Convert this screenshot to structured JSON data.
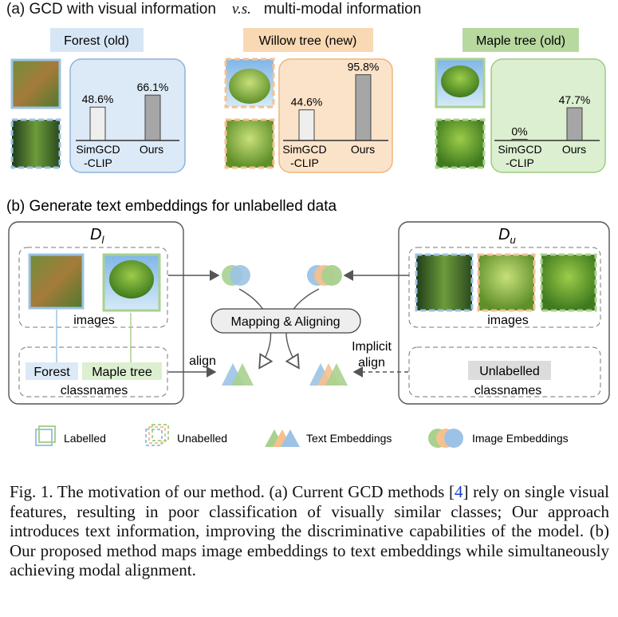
{
  "panel_a": {
    "title": "(a) GCD with visual information",
    "title_vs": "v.s.",
    "title_rest": "multi-modal information",
    "groups": [
      {
        "label": "Forest (old)",
        "label_color": "#d7e6f5",
        "box_color": "#dce9f6",
        "box_stroke": "#8db3dc",
        "simgcd_value": "48.6%",
        "simgcd_fraction": 0.486,
        "ours_value": "66.1%",
        "ours_fraction": 0.661
      },
      {
        "label": "Willow tree (new)",
        "label_color": "#f9d8b4",
        "box_color": "#fbe3c9",
        "box_stroke": "#efb57a",
        "simgcd_value": "44.6%",
        "simgcd_fraction": 0.446,
        "ours_value": "95.8%",
        "ours_fraction": 0.958
      },
      {
        "label": "Maple tree (old)",
        "label_color": "#b7d9a0",
        "box_color": "#dcefd0",
        "box_stroke": "#9ccc80",
        "simgcd_value": "0%",
        "simgcd_fraction": 0.0,
        "ours_value": "47.7%",
        "ours_fraction": 0.477
      }
    ],
    "x_label_1a": "SimGCD",
    "x_label_1b": "-CLIP",
    "x_label_2": "Ours"
  },
  "panel_b": {
    "title": "(b) Generate text embeddings for unlabelled data",
    "dl_symbol": "D",
    "dl_sub": "l",
    "du_symbol": "D",
    "du_sub": "u",
    "images_label": "images",
    "classnames_label": "classnames",
    "forest_label": "Forest",
    "maple_label": "Maple tree",
    "unlabelled_tag": "Unlabelled",
    "mapping_label": "Mapping & Aligning",
    "align_label": "align",
    "implicit_label_1": "Implicit",
    "implicit_label_2": "align"
  },
  "legend": {
    "labelled": "Labelled",
    "unlabelled": "Unabelled",
    "text_embeddings": "Text Embeddings",
    "image_embeddings": "Image Embeddings"
  },
  "colors": {
    "blue": "#9cc3e6",
    "orange": "#f6c08f",
    "green": "#a9d18e",
    "bar_light": "#eeeeee",
    "bar_dark": "#a6a6a6"
  },
  "caption": {
    "text_1": "Fig. 1. The motivation of our method. (a) Current GCD methods [",
    "ref": "4",
    "text_2": "] rely on single visual features, resulting in poor classification of visually similar classes; Our approach introduces text information, improving the discriminative capabilities of the model. (b) Our proposed method maps image embeddings to text embeddings while simultaneously achieving modal alignment."
  }
}
